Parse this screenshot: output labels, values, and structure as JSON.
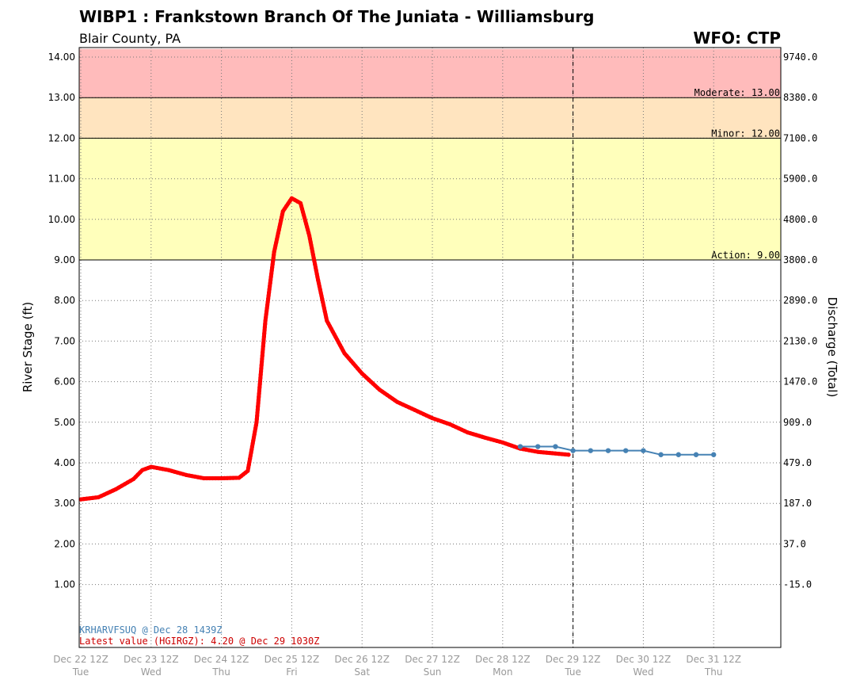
{
  "header": {
    "title": "WIBP1 : Frankstown Branch Of The Juniata - Williamsburg",
    "subtitle": "Blair County, PA",
    "wfo": "WFO: CTP"
  },
  "chart_data": {
    "type": "line",
    "title": "WIBP1 : Frankstown Branch Of The Juniata - Williamsburg",
    "subtitle": "Blair County, PA",
    "ylabel": "River Stage (ft)",
    "y2label": "Discharge (Total)",
    "ylim": [
      0,
      14.2
    ],
    "grid": true,
    "y_ticks": [
      {
        "value": 1,
        "label": "1.00",
        "label2": "-15.0"
      },
      {
        "value": 2,
        "label": "2.00",
        "label2": "37.0"
      },
      {
        "value": 3,
        "label": "3.00",
        "label2": "187.0"
      },
      {
        "value": 4,
        "label": "4.00",
        "label2": "479.0"
      },
      {
        "value": 5,
        "label": "5.00",
        "label2": "909.0"
      },
      {
        "value": 6,
        "label": "6.00",
        "label2": "1470.0"
      },
      {
        "value": 7,
        "label": "7.00",
        "label2": "2130.0"
      },
      {
        "value": 8,
        "label": "8.00",
        "label2": "2890.0"
      },
      {
        "value": 9,
        "label": "9.00",
        "label2": "3800.0"
      },
      {
        "value": 10,
        "label": "10.00",
        "label2": "4800.0"
      },
      {
        "value": 11,
        "label": "11.00",
        "label2": "5900.0"
      },
      {
        "value": 12,
        "label": "12.00",
        "label2": "7100.0"
      },
      {
        "value": 13,
        "label": "13.00",
        "label2": "8380.0"
      },
      {
        "value": 14,
        "label": "14.00",
        "label2": "9740.0"
      }
    ],
    "x_ticks": [
      {
        "x": "Dec 22 12Z",
        "date": "Dec 22 12Z",
        "day": "Tue"
      },
      {
        "x": "Dec 23 12Z",
        "date": "Dec 23 12Z",
        "day": "Wed"
      },
      {
        "x": "Dec 24 12Z",
        "date": "Dec 24 12Z",
        "day": "Thu"
      },
      {
        "x": "Dec 25 12Z",
        "date": "Dec 25 12Z",
        "day": "Fri"
      },
      {
        "x": "Dec 26 12Z",
        "date": "Dec 26 12Z",
        "day": "Sat"
      },
      {
        "x": "Dec 27 12Z",
        "date": "Dec 27 12Z",
        "day": "Sun"
      },
      {
        "x": "Dec 28 12Z",
        "date": "Dec 28 12Z",
        "day": "Mon"
      },
      {
        "x": "Dec 29 12Z",
        "date": "Dec 29 12Z",
        "day": "Tue"
      },
      {
        "x": "Dec 30 12Z",
        "date": "Dec 30 12Z",
        "day": "Wed"
      },
      {
        "x": "Dec 31 12Z",
        "date": "Dec 31 12Z",
        "day": "Thu"
      }
    ],
    "current_time": "Dec 29 12Z",
    "flood_categories": [
      {
        "name": "Action",
        "label": "Action: 9.00",
        "from": 9,
        "to": 12,
        "color": "#ffffbb"
      },
      {
        "name": "Minor",
        "label": "Minor: 12.00",
        "from": 12,
        "to": 13,
        "color": "#ffe4bf"
      },
      {
        "name": "Moderate",
        "label": "Moderate: 13.00",
        "from": 13,
        "to": 14.2,
        "color": "#ffbbbb"
      }
    ],
    "series": [
      {
        "kind": "observed",
        "color": "#ff0000",
        "points": [
          [
            "Dec 22 12Z",
            3.1
          ],
          [
            "Dec 22 18Z",
            3.15
          ],
          [
            "Dec 23 00Z",
            3.35
          ],
          [
            "Dec 23 06Z",
            3.6
          ],
          [
            "Dec 23 09Z",
            3.82
          ],
          [
            "Dec 23 12Z",
            3.9
          ],
          [
            "Dec 23 18Z",
            3.82
          ],
          [
            "Dec 24 00Z",
            3.7
          ],
          [
            "Dec 24 06Z",
            3.62
          ],
          [
            "Dec 24 12Z",
            3.62
          ],
          [
            "Dec 24 18Z",
            3.63
          ],
          [
            "Dec 24 21Z",
            3.8
          ],
          [
            "Dec 25 00Z",
            5.0
          ],
          [
            "Dec 25 03Z",
            7.5
          ],
          [
            "Dec 25 06Z",
            9.2
          ],
          [
            "Dec 25 09Z",
            10.2
          ],
          [
            "Dec 25 12Z",
            10.52
          ],
          [
            "Dec 25 15Z",
            10.4
          ],
          [
            "Dec 25 18Z",
            9.6
          ],
          [
            "Dec 25 21Z",
            8.5
          ],
          [
            "Dec 26 00Z",
            7.5
          ],
          [
            "Dec 26 06Z",
            6.7
          ],
          [
            "Dec 26 12Z",
            6.2
          ],
          [
            "Dec 26 18Z",
            5.8
          ],
          [
            "Dec 27 00Z",
            5.5
          ],
          [
            "Dec 27 06Z",
            5.3
          ],
          [
            "Dec 27 12Z",
            5.1
          ],
          [
            "Dec 27 18Z",
            4.95
          ],
          [
            "Dec 28 00Z",
            4.75
          ],
          [
            "Dec 28 06Z",
            4.62
          ],
          [
            "Dec 28 12Z",
            4.5
          ],
          [
            "Dec 28 18Z",
            4.35
          ],
          [
            "Dec 29 00Z",
            4.27
          ],
          [
            "Dec 29 06Z",
            4.23
          ],
          [
            "Dec 29 1030Z",
            4.2
          ]
        ]
      },
      {
        "kind": "forecast",
        "color": "#4682b4",
        "points": [
          [
            "Dec 28 18Z",
            4.4
          ],
          [
            "Dec 29 00Z",
            4.4
          ],
          [
            "Dec 29 06Z",
            4.4
          ],
          [
            "Dec 29 12Z",
            4.3
          ],
          [
            "Dec 29 18Z",
            4.3
          ],
          [
            "Dec 30 00Z",
            4.3
          ],
          [
            "Dec 30 06Z",
            4.3
          ],
          [
            "Dec 30 12Z",
            4.3
          ],
          [
            "Dec 30 18Z",
            4.2
          ],
          [
            "Dec 31 00Z",
            4.2
          ],
          [
            "Dec 31 06Z",
            4.2
          ],
          [
            "Dec 31 12Z",
            4.2
          ]
        ]
      }
    ],
    "notes": {
      "forecast_issuance": "KRHARVFSUQ @ Dec 28 1439Z",
      "latest_value": "Latest value (HGIRGZ): 4.20 @ Dec 29 1030Z"
    }
  }
}
